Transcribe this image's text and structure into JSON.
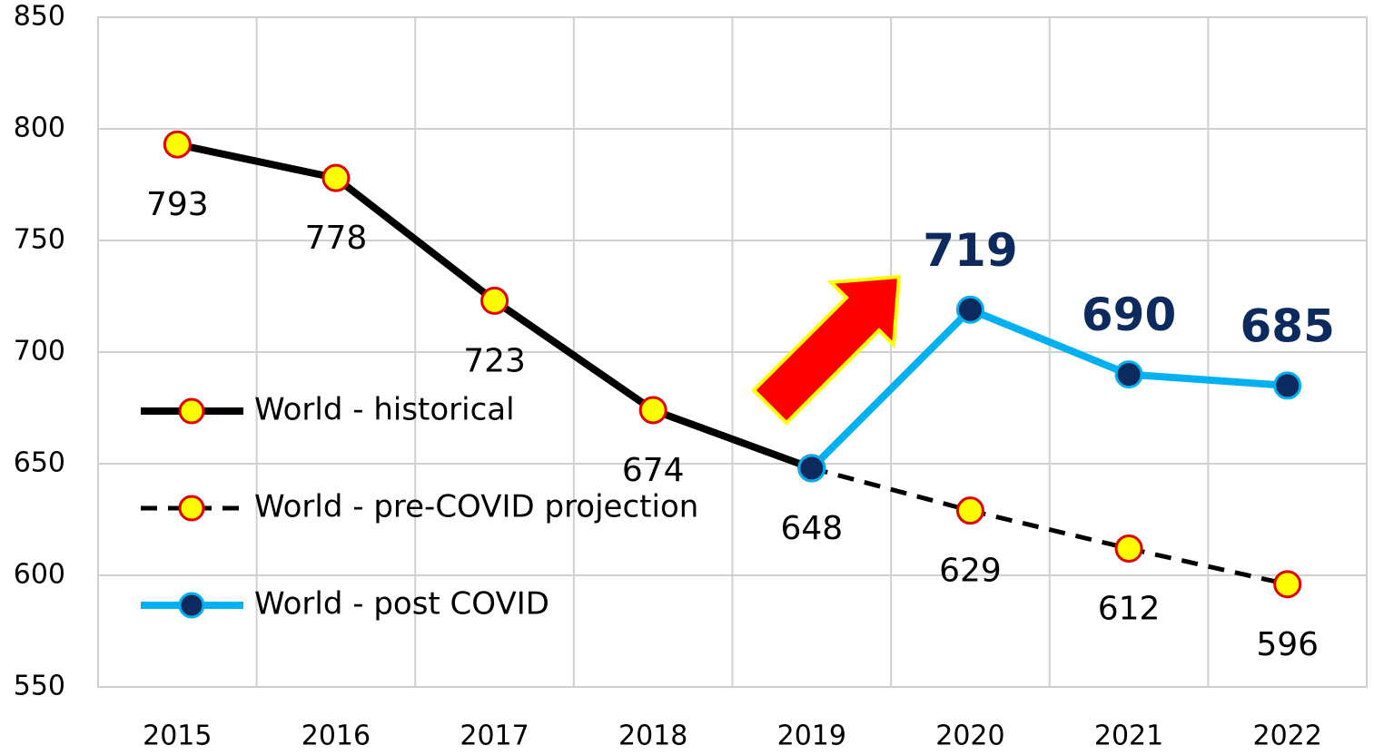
{
  "chart_data": {
    "type": "line",
    "categories": [
      "2015",
      "2016",
      "2017",
      "2018",
      "2019",
      "2020",
      "2021",
      "2022"
    ],
    "ylim": [
      550,
      850
    ],
    "yticks": [
      550,
      600,
      650,
      700,
      750,
      800,
      850
    ],
    "grid": true,
    "legend": "left",
    "series": [
      {
        "name": "World - pre-COVID projection",
        "color": "#000000",
        "line_style": "dashed",
        "marker_fill": "#ffff00",
        "marker_edge": "#e00000",
        "values": [
          null,
          null,
          null,
          null,
          648,
          629,
          612,
          596
        ]
      },
      {
        "name": "World - historical",
        "color": "#000000",
        "line_style": "solid",
        "marker_fill": "#ffff00",
        "marker_edge": "#e00000",
        "values": [
          793,
          778,
          723,
          674,
          648,
          null,
          null,
          null
        ]
      },
      {
        "name": "World - post COVID",
        "color": "#00b0f0",
        "line_style": "solid",
        "marker_fill": "#0d2a5e",
        "marker_edge": "#00b0f0",
        "values": [
          null,
          null,
          null,
          null,
          648,
          719,
          690,
          685
        ]
      }
    ]
  }
}
